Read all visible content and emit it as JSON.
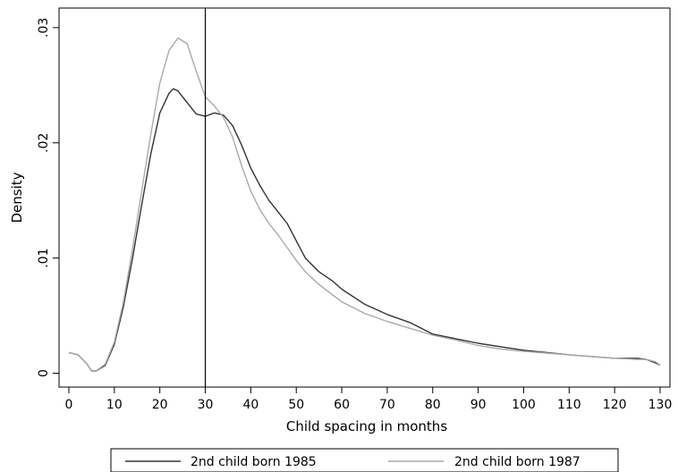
{
  "chart_data": {
    "type": "line",
    "title": "",
    "xlabel": "Child spacing in months",
    "ylabel": "Density",
    "xlim": [
      0,
      130
    ],
    "ylim": [
      -0.0005,
      0.031
    ],
    "xticks": [
      0,
      10,
      20,
      30,
      40,
      50,
      60,
      70,
      80,
      90,
      100,
      110,
      120,
      130
    ],
    "xtick_labels": [
      "0",
      "10",
      "20",
      "30",
      "40",
      "50",
      "60",
      "70",
      "80",
      "90",
      "100",
      "110",
      "120",
      "130"
    ],
    "yticks": [
      0,
      0.01,
      0.02,
      0.03
    ],
    "ytick_labels": [
      "0",
      ".01",
      ".02",
      ".03"
    ],
    "grid": false,
    "legend_position": "bottom",
    "vline": {
      "x": 30,
      "color": "#000000"
    },
    "series": [
      {
        "name": "2nd child born 1985",
        "color": "#333333",
        "x": [
          0,
          2,
          4,
          5,
          6,
          8,
          10,
          12,
          14,
          16,
          18,
          20,
          22,
          23,
          24,
          26,
          28,
          30,
          32,
          34,
          36,
          38,
          40,
          42,
          44,
          46,
          48,
          50,
          52,
          55,
          58,
          60,
          65,
          70,
          75,
          80,
          85,
          90,
          95,
          100,
          110,
          120,
          125,
          127,
          129,
          130
        ],
        "y": [
          0.0018,
          0.0016,
          0.0008,
          0.0002,
          0.0002,
          0.0007,
          0.0025,
          0.0058,
          0.01,
          0.0146,
          0.019,
          0.0226,
          0.0243,
          0.0247,
          0.0245,
          0.0235,
          0.0225,
          0.0223,
          0.0226,
          0.0224,
          0.0215,
          0.0198,
          0.0178,
          0.0163,
          0.015,
          0.014,
          0.013,
          0.0115,
          0.01,
          0.0088,
          0.008,
          0.0073,
          0.006,
          0.0051,
          0.0044,
          0.0034,
          0.003,
          0.0026,
          0.0023,
          0.002,
          0.0016,
          0.0013,
          0.0013,
          0.0012,
          0.0009,
          0.0007
        ]
      },
      {
        "name": "2nd child born 1987",
        "color": "#aaaaaa",
        "x": [
          0,
          2,
          4,
          5,
          6,
          8,
          10,
          12,
          14,
          16,
          18,
          20,
          22,
          24,
          26,
          28,
          30,
          32,
          34,
          36,
          38,
          40,
          42,
          44,
          46,
          48,
          50,
          52,
          55,
          58,
          60,
          65,
          70,
          75,
          80,
          85,
          90,
          95,
          100,
          110,
          120,
          125,
          127,
          129,
          130
        ],
        "y": [
          0.0018,
          0.0016,
          0.0008,
          0.0002,
          0.0002,
          0.0008,
          0.0027,
          0.0062,
          0.0108,
          0.0158,
          0.0207,
          0.0252,
          0.028,
          0.0291,
          0.0286,
          0.0262,
          0.024,
          0.0232,
          0.0222,
          0.0205,
          0.018,
          0.0158,
          0.0142,
          0.013,
          0.012,
          0.0109,
          0.0098,
          0.0088,
          0.0077,
          0.0068,
          0.0062,
          0.0052,
          0.0045,
          0.0039,
          0.0033,
          0.0029,
          0.0024,
          0.0021,
          0.0019,
          0.0016,
          0.0013,
          0.0012,
          0.0012,
          0.001,
          0.0007
        ]
      }
    ]
  }
}
